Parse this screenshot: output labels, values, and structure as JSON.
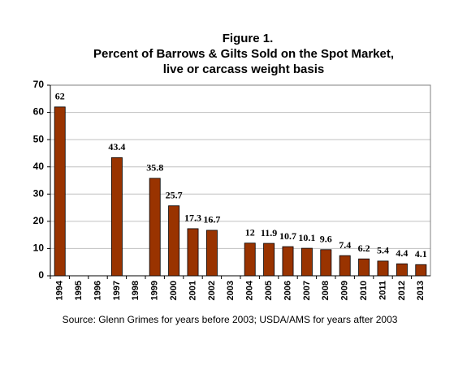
{
  "chart_data": {
    "type": "bar",
    "title": [
      "Figure 1.",
      "Percent of Barrows & Gilts Sold on the Spot Market,",
      "live or carcass weight basis"
    ],
    "categories": [
      "1994",
      "1995",
      "1996",
      "1997",
      "1998",
      "1999",
      "2000",
      "2001",
      "2002",
      "2003",
      "2004",
      "2005",
      "2006",
      "2007",
      "2008",
      "2009",
      "2010",
      "2011",
      "2012",
      "2013"
    ],
    "values": [
      62,
      null,
      null,
      43.4,
      null,
      35.8,
      25.7,
      17.3,
      16.7,
      null,
      12,
      11.9,
      10.7,
      10.1,
      9.6,
      7.4,
      6.2,
      5.4,
      4.4,
      4.1
    ],
    "color": "#993300",
    "ylim": [
      0,
      70
    ],
    "yticks": [
      0,
      10,
      20,
      30,
      40,
      50,
      60,
      70
    ],
    "grid": true,
    "source": "Source: Glenn Grimes for years before 2003; USDA/AMS for years after 2003"
  }
}
